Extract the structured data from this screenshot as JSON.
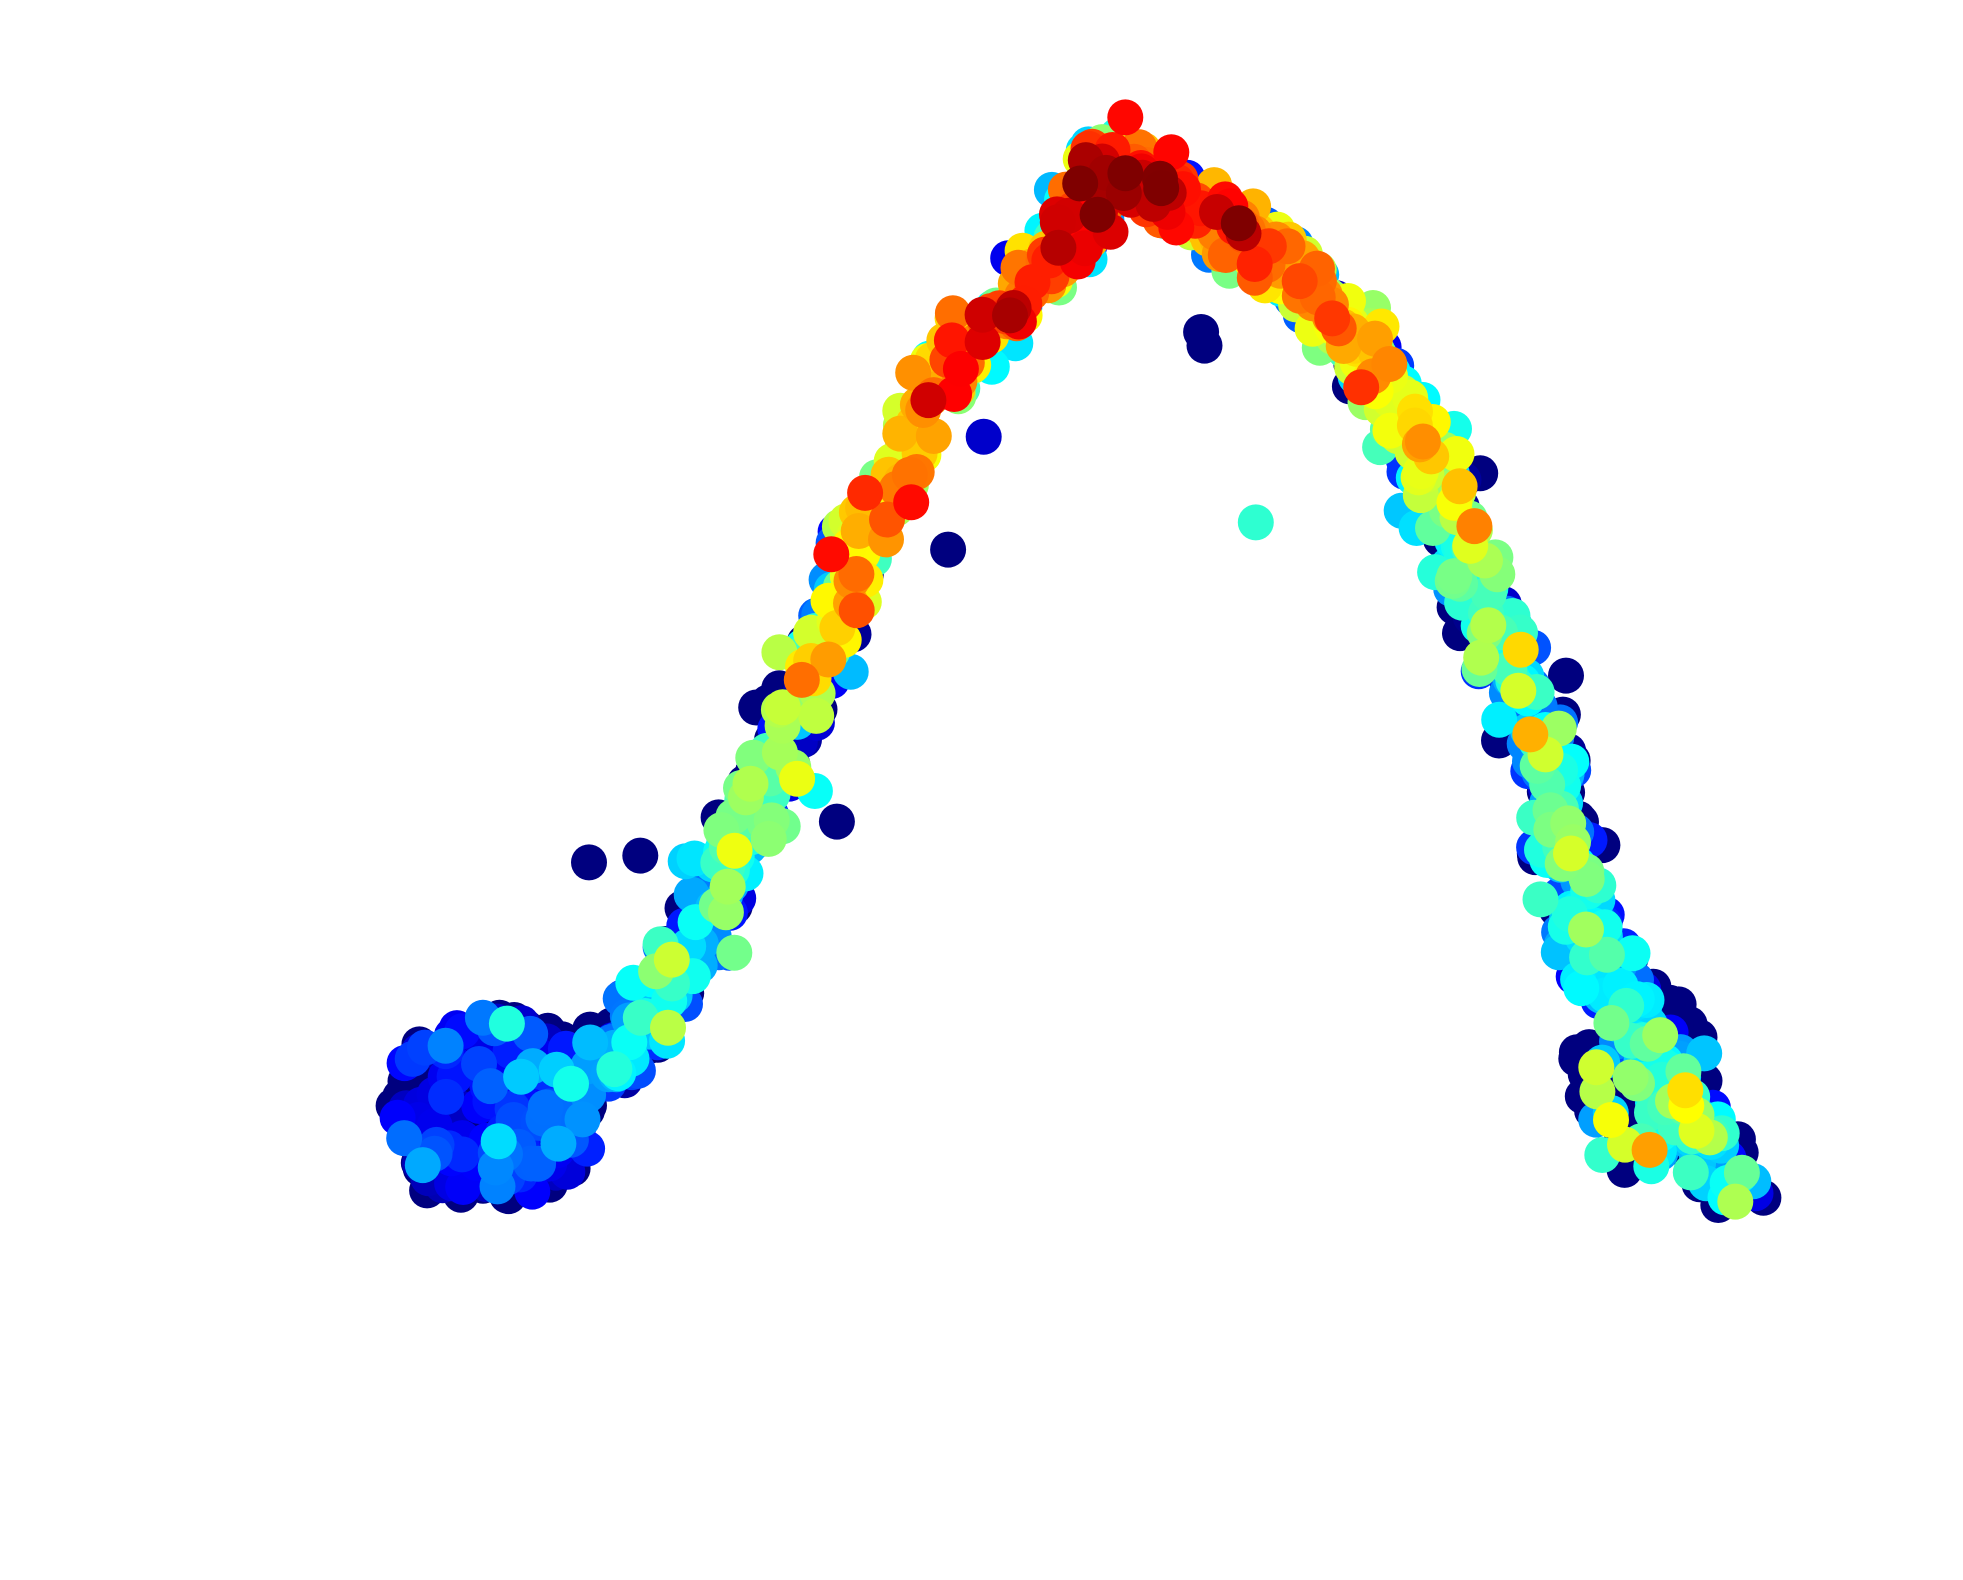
{
  "chart_data": {
    "type": "scatter",
    "title": "",
    "xlabel": "",
    "ylabel": "",
    "axes_visible": false,
    "grid": false,
    "legend": "none",
    "xlim": [
      0,
      100
    ],
    "ylim": [
      0,
      100
    ],
    "colormap": "jet",
    "value_range": [
      0,
      1
    ],
    "colormap_stops": [
      "#00007f",
      "#0000ff",
      "#007fff",
      "#00ffff",
      "#7fff7f",
      "#ffff00",
      "#ff7f00",
      "#ff0000",
      "#7f0000"
    ],
    "curve": {
      "description_points": [
        [
          16,
          18
        ],
        [
          22,
          22
        ],
        [
          27,
          28
        ],
        [
          32,
          38
        ],
        [
          36,
          50
        ],
        [
          40,
          64
        ],
        [
          46,
          78
        ],
        [
          52,
          86
        ],
        [
          55,
          93
        ],
        [
          58,
          90
        ],
        [
          62,
          88
        ],
        [
          66,
          84
        ],
        [
          70,
          78
        ],
        [
          74,
          70
        ],
        [
          77,
          60
        ],
        [
          80,
          50
        ],
        [
          82,
          40
        ],
        [
          84,
          32
        ],
        [
          87,
          26
        ],
        [
          92,
          16
        ]
      ],
      "value_profile": [
        0.02,
        0.08,
        0.25,
        0.35,
        0.45,
        0.62,
        0.72,
        0.78,
        0.82,
        0.75,
        0.7,
        0.65,
        0.55,
        0.45,
        0.38,
        0.32,
        0.3,
        0.28,
        0.3,
        0.32
      ]
    },
    "clusters": [
      {
        "name": "left-blob",
        "cx": 19,
        "cy": 23,
        "rx": 6,
        "ry": 7,
        "n": 220,
        "value_mean": 0.05,
        "value_spread": 0.12
      },
      {
        "name": "right-tail",
        "cx": 86,
        "cy": 25,
        "rx": 4,
        "ry": 7,
        "n": 80,
        "value_mean": 0.25,
        "value_spread": 0.18
      }
    ],
    "outliers": [
      {
        "x": 60.5,
        "y": 79,
        "v": 0.0
      },
      {
        "x": 60.3,
        "y": 80,
        "v": 0.0
      },
      {
        "x": 69,
        "y": 76,
        "v": 0.0
      },
      {
        "x": 45.5,
        "y": 64,
        "v": 0.0
      },
      {
        "x": 63.5,
        "y": 66,
        "v": 0.42
      },
      {
        "x": 39,
        "y": 44,
        "v": 0.0
      },
      {
        "x": 24.5,
        "y": 41,
        "v": 0.0
      },
      {
        "x": 27.5,
        "y": 41.5,
        "v": 0.0
      },
      {
        "x": 62.5,
        "y": 88,
        "v": 1.0
      }
    ]
  }
}
